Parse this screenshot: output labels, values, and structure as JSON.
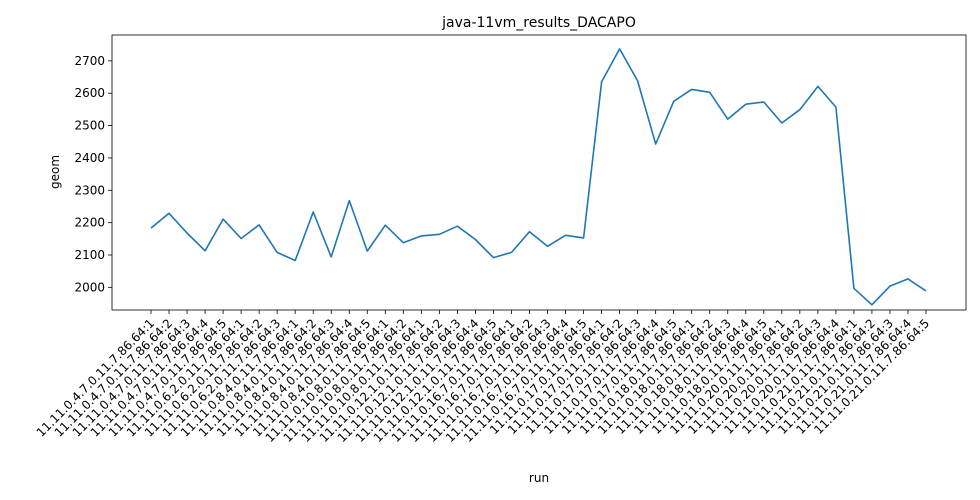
{
  "chart_data": {
    "type": "line",
    "title": "java-11vm_results_DACAPO",
    "xlabel": "run",
    "ylabel": "geom",
    "ylim": [
      1930,
      2780
    ],
    "yticks": [
      2000,
      2100,
      2200,
      2300,
      2400,
      2500,
      2600,
      2700
    ],
    "grid": false,
    "legend": "none",
    "line_color": "#1f77b4",
    "categories": [
      "11.11.0.4.7.0.11.7.86.64:1",
      "11.11.0.4.7.0.11.7.86.64:2",
      "11.11.0.4.7.0.11.7.86.64:3",
      "11.11.0.4.7.0.11.7.86.64:4",
      "11.11.0.4.7.0.11.7.86.64:5",
      "11.11.0.6.2.0.11.7.86.64:1",
      "11.11.0.6.2.0.11.7.86.64:2",
      "11.11.0.6.2.0.11.7.86.64:3",
      "11.11.0.8.4.0.11.7.86.64:1",
      "11.11.0.8.4.0.11.7.86.64:2",
      "11.11.0.8.4.0.11.7.86.64:3",
      "11.11.0.8.4.0.11.7.86.64:4",
      "11.11.0.8.4.0.11.7.86.64:5",
      "11.11.0.10.8.0.11.7.86.64:1",
      "11.11.0.10.8.0.11.7.86.64:2",
      "11.11.0.10.8.0.11.7.86.64:1",
      "11.11.0.12.1.0.11.7.86.64:2",
      "11.11.0.12.1.0.11.7.86.64:3",
      "11.11.0.12.1.0.11.7.86.64:4",
      "11.11.0.12.1.0.11.7.86.64:5",
      "11.11.0.16.7.0.11.7.86.64:1",
      "11.11.0.16.7.0.11.7.86.64:2",
      "11.11.0.16.7.0.11.7.86.64:3",
      "11.11.0.16.7.0.11.7.86.64:4",
      "11.11.0.16.7.0.11.7.86.64:5",
      "11.11.0.17.0.11.7.86.64:1",
      "11.11.0.17.0.11.7.86.64:2",
      "11.11.0.17.0.11.7.86.64:3",
      "11.11.0.17.0.11.7.86.64:4",
      "11.11.0.17.0.11.7.86.64:5",
      "11.11.0.18.0.11.7.86.64:1",
      "11.11.0.18.0.11.7.86.64:2",
      "11.11.0.18.0.11.7.86.64:3",
      "11.11.0.18.0.11.7.86.64:4",
      "11.11.0.18.0.11.7.86.64:5",
      "11.11.0.20.0.11.7.86.64:1",
      "11.11.0.20.0.11.7.86.64:2",
      "11.11.0.20.0.11.7.86.64:3",
      "11.11.0.20.0.11.7.86.64:4",
      "11.11.0.21.0.11.7.86.64:1",
      "11.11.0.21.0.11.7.86.64:2",
      "11.11.0.21.0.11.7.86.64:3",
      "11.11.0.21.0.11.7.86.64:4",
      "11.11.0.21.0.11.7.86.64:5"
    ],
    "values": [
      2183,
      2229,
      2168,
      2113,
      2211,
      2151,
      2193,
      2108,
      2083,
      2233,
      2094,
      2268,
      2112,
      2192,
      2138,
      2159,
      2164,
      2189,
      2148,
      2092,
      2108,
      2172,
      2127,
      2161,
      2153,
      2635,
      2737,
      2638,
      2443,
      2575,
      2612,
      2603,
      2520,
      2566,
      2573,
      2508,
      2549,
      2621,
      2557,
      1997,
      1946,
      2004,
      2026,
      1989
    ]
  }
}
